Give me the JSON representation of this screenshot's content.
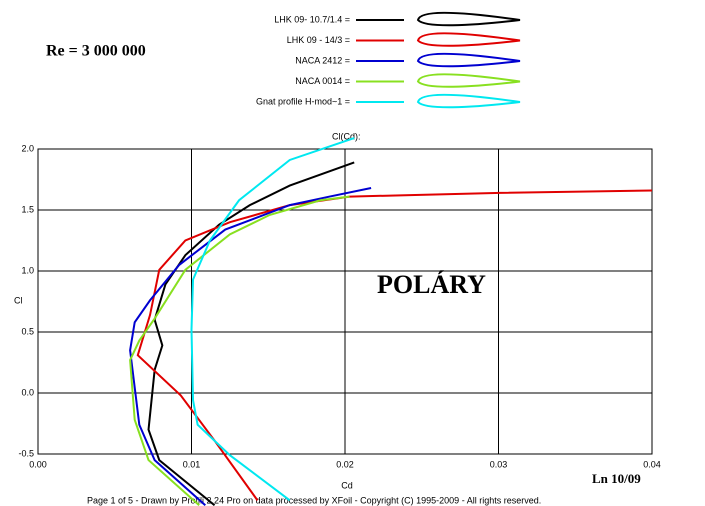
{
  "chart_data": {
    "type": "line",
    "title": "POLÁRY",
    "subtitle": "Re = 3 000 000",
    "annotations": [
      "Cl(Cd):",
      "Ln 10/09",
      "Page 1 of 5  -   Drawn by Profili 2.24 Pro on data processed by  XFoil - Copyright (C) 1995-2009 - All rights reserved."
    ],
    "xlabel": "Cd",
    "ylabel": "Cl",
    "xlim": [
      0,
      0.04
    ],
    "ylim": [
      -0.5,
      2.0
    ],
    "xticks": [
      {
        "value": 0,
        "label": "0.00"
      },
      0.01,
      0.02,
      0.03,
      0.04
    ],
    "yticks": [
      {
        "value": -0.5,
        "label": "-0.5"
      },
      {
        "value": 0,
        "label": "0.0"
      },
      0.5,
      {
        "value": 1,
        "label": "1.0"
      },
      1.5,
      {
        "value": 2,
        "label": "2.0"
      }
    ],
    "grid": true,
    "legend": "top",
    "series": [
      {
        "name": "LHK  09- 10.7/1.4 =",
        "color": "#000000",
        "x": [
          0.0115,
          0.0079,
          0.0072,
          0.0076,
          0.0081,
          0.0076,
          0.0083,
          0.0096,
          0.0118,
          0.0138,
          0.0164,
          0.0206
        ],
        "values": [
          -0.92,
          -0.55,
          -0.3,
          0.19,
          0.39,
          0.6,
          0.89,
          1.13,
          1.38,
          1.54,
          1.7,
          1.89
        ]
      },
      {
        "name": "LHK 09 - 14/3   =",
        "color": "#e00000",
        "x": [
          0.0143,
          0.0115,
          0.0093,
          0.0065,
          0.0073,
          0.0079,
          0.0096,
          0.0125,
          0.0164,
          0.0203,
          0.0236,
          0.0301,
          0.04
        ],
        "values": [
          -0.88,
          -0.39,
          -0.02,
          0.31,
          0.64,
          1.01,
          1.25,
          1.4,
          1.54,
          1.61,
          1.62,
          1.64,
          1.66
        ]
      },
      {
        "name": "NACA 2412 =",
        "color": "#0000d0",
        "x": [
          0.0109,
          0.0076,
          0.0066,
          0.006,
          0.0063,
          0.0073,
          0.0092,
          0.0122,
          0.0164,
          0.019,
          0.0217
        ],
        "values": [
          -0.92,
          -0.55,
          -0.26,
          0.35,
          0.58,
          0.76,
          1.05,
          1.34,
          1.54,
          1.61,
          1.68
        ]
      },
      {
        "name": "NACA 0014 =",
        "color": "#88e020",
        "x": [
          0.0105,
          0.0072,
          0.0063,
          0.006,
          0.0066,
          0.0076,
          0.0096,
          0.0125,
          0.0151,
          0.0184,
          0.0203
        ],
        "values": [
          -0.92,
          -0.55,
          -0.22,
          0.27,
          0.43,
          0.61,
          1.01,
          1.3,
          1.46,
          1.58,
          1.61
        ]
      },
      {
        "name": "Gnat profile H-mod~1 =",
        "color": "#00e8f0",
        "x": [
          0.0164,
          0.0125,
          0.0104,
          0.0101,
          0.01,
          0.0101,
          0.0112,
          0.0131,
          0.0164,
          0.0206
        ],
        "values": [
          -0.88,
          -0.51,
          -0.26,
          -0.06,
          0.52,
          0.93,
          1.25,
          1.58,
          1.91,
          2.09
        ]
      }
    ]
  }
}
